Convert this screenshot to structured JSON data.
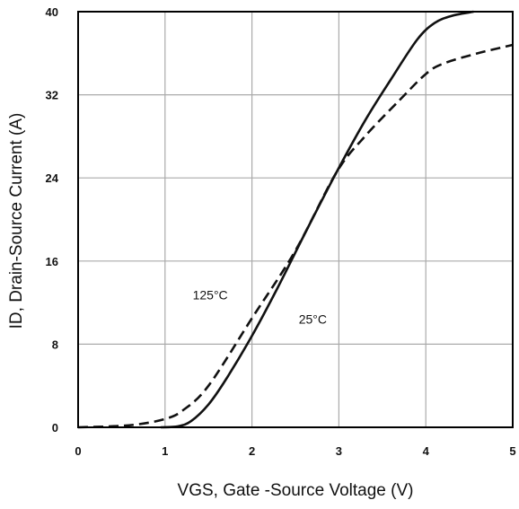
{
  "chart_data": {
    "type": "line",
    "title": "",
    "xlabel": "VGS, Gate -Source Voltage (V)",
    "ylabel": "ID, Drain-Source Current (A)",
    "xlim": [
      0,
      5
    ],
    "ylim": [
      0,
      40
    ],
    "x_ticks": [
      "0",
      "1",
      "2",
      "3",
      "4",
      "5"
    ],
    "y_ticks": [
      "0",
      "8",
      "16",
      "24",
      "32",
      "40"
    ],
    "grid": true,
    "legend": "none",
    "series": [
      {
        "name": "25°C",
        "style": "solid",
        "x": [
          0.95,
          1.15,
          1.3,
          1.5,
          1.7,
          2.0,
          2.3,
          2.6,
          2.97,
          3.3,
          3.6,
          3.9,
          4.1,
          4.3,
          4.55
        ],
        "y": [
          0,
          0.1,
          0.6,
          2.2,
          4.6,
          8.8,
          13.5,
          18.5,
          24.5,
          29.5,
          33.5,
          37.3,
          38.9,
          39.6,
          40
        ]
      },
      {
        "name": "125°C",
        "style": "dashed",
        "x": [
          0.0,
          0.4,
          0.7,
          1.0,
          1.2,
          1.5,
          2.0,
          2.5,
          2.97,
          3.3,
          3.7,
          4.0,
          4.2,
          4.6,
          5.0
        ],
        "y": [
          0,
          0.1,
          0.3,
          0.8,
          1.6,
          4.0,
          10.5,
          17.0,
          24.5,
          28.0,
          31.5,
          34.0,
          35.0,
          36.0,
          36.8
        ]
      }
    ],
    "annotations": [
      {
        "text": "125°C",
        "x": 1.52,
        "y": 12.3
      },
      {
        "text": "25°C",
        "x": 2.7,
        "y": 10.0
      }
    ]
  },
  "colors": {
    "line": "#111111",
    "grid": "#aaaaaa",
    "frame": "#000000",
    "background": "#ffffff"
  }
}
